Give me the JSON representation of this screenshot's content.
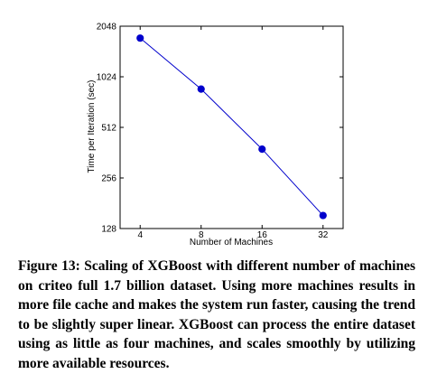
{
  "chart_data": {
    "type": "line",
    "title": "",
    "xlabel": "Number of Machines",
    "ylabel": "Time per Iteration (sec)",
    "x_scale": "log2",
    "y_scale": "log2",
    "xlim": [
      4,
      32
    ],
    "ylim": [
      128,
      2048
    ],
    "x_ticks": [
      "4",
      "8",
      "16",
      "32"
    ],
    "y_ticks": [
      "128",
      "256",
      "512",
      "1024",
      "2048"
    ],
    "series": [
      {
        "color": "#0000cc",
        "x": [
          4,
          8,
          16,
          32
        ],
        "y": [
          1740,
          865,
          380,
          153
        ]
      }
    ],
    "grid": false
  },
  "caption": {
    "label": "Figure 13:",
    "text": "Scaling of XGBoost with different number of machines on criteo full 1.7 billion dataset. Using more machines results in more file cache and makes the system run faster, causing the trend to be slightly super linear. XGBoost can process the entire dataset using as little as four machines, and scales smoothly by utilizing more available resources."
  }
}
